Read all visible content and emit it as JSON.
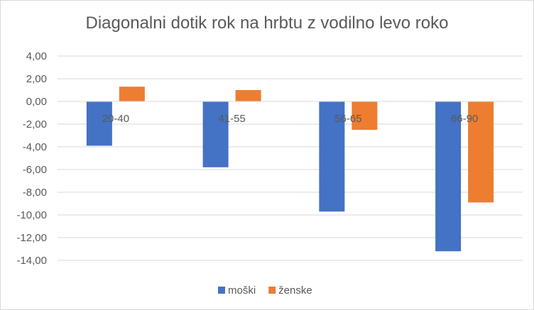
{
  "chart_data": {
    "type": "bar",
    "title": "Diagonalni dotik rok na hrbtu z vodilno levo roko",
    "categories": [
      "20-40",
      "41-55",
      "56-65",
      "66-90"
    ],
    "series": [
      {
        "name": "moški",
        "color": "#4472c4",
        "values": [
          -3.9,
          -5.8,
          -9.7,
          -13.2
        ]
      },
      {
        "name": "ženske",
        "color": "#ed7d31",
        "values": [
          1.3,
          1.0,
          -2.5,
          -8.9
        ]
      }
    ],
    "ylim": [
      -14,
      4
    ],
    "yticks": [
      "4,00",
      "2,00",
      "0,00",
      "-2,00",
      "-4,00",
      "-6,00",
      "-8,00",
      "-10,00",
      "-12,00",
      "-14,00"
    ],
    "ytick_values": [
      4,
      2,
      0,
      -2,
      -4,
      -6,
      -8,
      -10,
      -12,
      -14
    ],
    "grid": true,
    "legend": "bottom",
    "gridline_color": "#d9d9d9"
  }
}
